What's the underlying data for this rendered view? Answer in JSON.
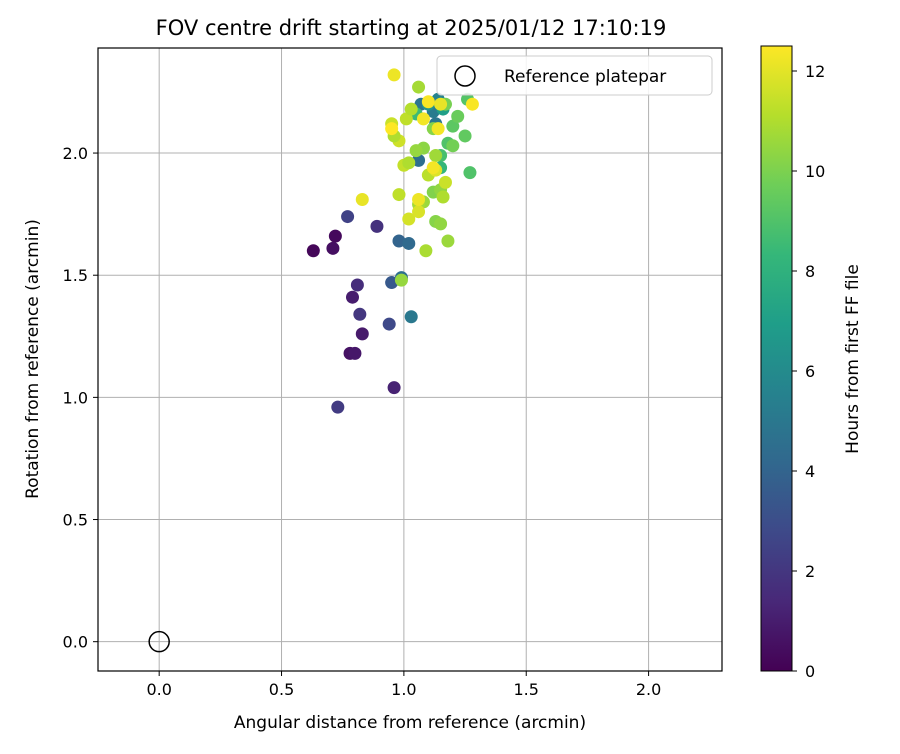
{
  "chart_data": {
    "type": "scatter",
    "title": "FOV centre drift starting at 2025/01/12 17:10:19",
    "xlabel": "Angular distance from reference (arcmin)",
    "ylabel": "Rotation from reference (arcmin)",
    "xlim": [
      -0.25,
      2.3
    ],
    "ylim": [
      -0.12,
      2.43
    ],
    "xticks": [
      "0.0",
      "0.5",
      "1.0",
      "1.5",
      "2.0"
    ],
    "yticks": [
      "0.0",
      "0.5",
      "1.0",
      "1.5",
      "2.0"
    ],
    "grid": true,
    "legend": {
      "position": "top-right",
      "entries": [
        "Reference platepar"
      ]
    },
    "reference_point": {
      "label": "Reference platepar",
      "x": 0.0,
      "y": 0.0
    },
    "colorbar": {
      "label": "Hours from first FF file",
      "colormap": "viridis",
      "range": [
        0,
        12.5
      ],
      "ticks": [
        "0",
        "2",
        "4",
        "6",
        "8",
        "10",
        "12"
      ]
    },
    "colormap_stops": [
      "#440154",
      "#482878",
      "#3e4989",
      "#31688e",
      "#26828e",
      "#1f9e89",
      "#35b779",
      "#6ece58",
      "#b5de2b",
      "#fde725"
    ],
    "points": [
      {
        "x": 0.63,
        "y": 1.6,
        "c": 0.2
      },
      {
        "x": 0.72,
        "y": 1.66,
        "c": 0.3
      },
      {
        "x": 0.71,
        "y": 1.61,
        "c": 0.5
      },
      {
        "x": 0.78,
        "y": 1.18,
        "c": 0.6
      },
      {
        "x": 0.8,
        "y": 1.18,
        "c": 0.8
      },
      {
        "x": 0.83,
        "y": 1.26,
        "c": 0.9
      },
      {
        "x": 0.79,
        "y": 1.41,
        "c": 1.0
      },
      {
        "x": 0.96,
        "y": 1.04,
        "c": 1.2
      },
      {
        "x": 0.81,
        "y": 1.46,
        "c": 1.6
      },
      {
        "x": 0.82,
        "y": 1.34,
        "c": 2.0
      },
      {
        "x": 0.73,
        "y": 0.96,
        "c": 2.2
      },
      {
        "x": 0.89,
        "y": 1.7,
        "c": 1.8
      },
      {
        "x": 0.77,
        "y": 1.74,
        "c": 2.5
      },
      {
        "x": 0.94,
        "y": 1.3,
        "c": 2.8
      },
      {
        "x": 0.95,
        "y": 1.47,
        "c": 3.5
      },
      {
        "x": 0.98,
        "y": 1.64,
        "c": 4.0
      },
      {
        "x": 1.02,
        "y": 1.63,
        "c": 4.3
      },
      {
        "x": 0.99,
        "y": 1.49,
        "c": 4.6
      },
      {
        "x": 1.03,
        "y": 1.33,
        "c": 5.0
      },
      {
        "x": 1.06,
        "y": 1.97,
        "c": 4.5
      },
      {
        "x": 1.07,
        "y": 2.2,
        "c": 4.8
      },
      {
        "x": 1.12,
        "y": 2.17,
        "c": 5.2
      },
      {
        "x": 1.14,
        "y": 2.22,
        "c": 5.6
      },
      {
        "x": 1.13,
        "y": 2.12,
        "c": 4.9
      },
      {
        "x": 1.1,
        "y": 2.2,
        "c": 6.5
      },
      {
        "x": 1.16,
        "y": 2.18,
        "c": 7.0
      },
      {
        "x": 1.05,
        "y": 2.16,
        "c": 8.5
      },
      {
        "x": 1.15,
        "y": 1.99,
        "c": 8.8
      },
      {
        "x": 1.15,
        "y": 1.94,
        "c": 8.3
      },
      {
        "x": 1.18,
        "y": 2.04,
        "c": 9.0
      },
      {
        "x": 1.2,
        "y": 2.11,
        "c": 9.3
      },
      {
        "x": 1.22,
        "y": 2.15,
        "c": 9.6
      },
      {
        "x": 1.25,
        "y": 2.07,
        "c": 9.4
      },
      {
        "x": 1.27,
        "y": 1.92,
        "c": 9.0
      },
      {
        "x": 1.26,
        "y": 2.22,
        "c": 9.1
      },
      {
        "x": 1.2,
        "y": 2.03,
        "c": 9.8
      },
      {
        "x": 1.17,
        "y": 2.2,
        "c": 9.9
      },
      {
        "x": 1.12,
        "y": 2.1,
        "c": 10.2
      },
      {
        "x": 1.08,
        "y": 2.02,
        "c": 10.3
      },
      {
        "x": 1.05,
        "y": 2.01,
        "c": 10.5
      },
      {
        "x": 1.13,
        "y": 1.99,
        "c": 10.7
      },
      {
        "x": 1.12,
        "y": 1.84,
        "c": 10.1
      },
      {
        "x": 1.15,
        "y": 1.85,
        "c": 10.4
      },
      {
        "x": 1.08,
        "y": 1.8,
        "c": 10.6
      },
      {
        "x": 1.06,
        "y": 1.79,
        "c": 10.8
      },
      {
        "x": 1.13,
        "y": 1.72,
        "c": 10.2
      },
      {
        "x": 1.15,
        "y": 1.71,
        "c": 10.4
      },
      {
        "x": 1.09,
        "y": 1.6,
        "c": 10.9
      },
      {
        "x": 1.18,
        "y": 1.64,
        "c": 10.6
      },
      {
        "x": 1.16,
        "y": 1.82,
        "c": 11.0
      },
      {
        "x": 1.1,
        "y": 1.91,
        "c": 11.2
      },
      {
        "x": 1.0,
        "y": 1.95,
        "c": 11.4
      },
      {
        "x": 1.02,
        "y": 1.96,
        "c": 11.0
      },
      {
        "x": 0.98,
        "y": 2.05,
        "c": 11.6
      },
      {
        "x": 0.96,
        "y": 2.07,
        "c": 11.0
      },
      {
        "x": 0.95,
        "y": 2.12,
        "c": 11.5
      },
      {
        "x": 1.01,
        "y": 2.14,
        "c": 11.3
      },
      {
        "x": 1.03,
        "y": 2.18,
        "c": 11.1
      },
      {
        "x": 1.06,
        "y": 2.27,
        "c": 10.8
      },
      {
        "x": 1.13,
        "y": 1.93,
        "c": 11.9
      },
      {
        "x": 1.02,
        "y": 1.73,
        "c": 11.7
      },
      {
        "x": 1.06,
        "y": 1.76,
        "c": 11.8
      },
      {
        "x": 1.17,
        "y": 1.88,
        "c": 11.5
      },
      {
        "x": 0.99,
        "y": 1.48,
        "c": 10.5
      },
      {
        "x": 0.98,
        "y": 1.83,
        "c": 11.3
      },
      {
        "x": 0.83,
        "y": 1.81,
        "c": 12.1
      },
      {
        "x": 0.96,
        "y": 2.32,
        "c": 12.2
      },
      {
        "x": 1.08,
        "y": 2.14,
        "c": 12.3
      },
      {
        "x": 1.1,
        "y": 2.21,
        "c": 12.4
      },
      {
        "x": 1.15,
        "y": 2.2,
        "c": 12.1
      },
      {
        "x": 1.14,
        "y": 2.1,
        "c": 12.3
      },
      {
        "x": 1.28,
        "y": 2.2,
        "c": 12.4
      },
      {
        "x": 0.95,
        "y": 2.1,
        "c": 12.5
      },
      {
        "x": 1.12,
        "y": 1.94,
        "c": 12.3
      },
      {
        "x": 1.06,
        "y": 1.81,
        "c": 12.2
      }
    ]
  }
}
